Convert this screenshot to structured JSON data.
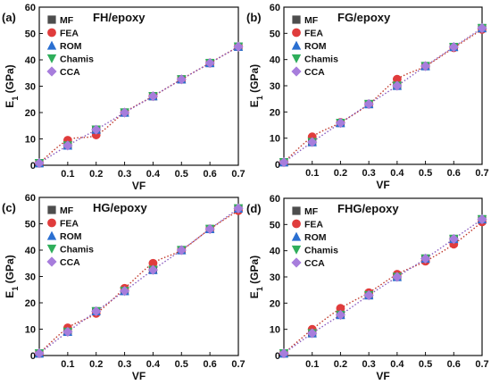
{
  "markers": {
    "MF": {
      "shape": "square",
      "color": "#4d4d4d"
    },
    "FEA": {
      "shape": "circle",
      "color": "#e03c3c"
    },
    "ROM": {
      "shape": "triangle-up",
      "color": "#2a6fd1"
    },
    "Chamis": {
      "shape": "triangle-down",
      "color": "#2fae5b"
    },
    "CCA": {
      "shape": "diamond",
      "color": "#a77ddc"
    }
  },
  "fit_line_colors": {
    "FEA": "#c0392b",
    "CCA": "#8a5cc0"
  },
  "chart_data": [
    {
      "type": "scatter",
      "tag": "(a)",
      "title": "FH/epoxy",
      "xlabel": "VF",
      "ylabel_main": "E",
      "ylabel_sub": "1",
      "ylabel_unit": " (GPa)",
      "xlim": [
        0.0,
        0.7
      ],
      "ylim": [
        0,
        60
      ],
      "xticks": [
        "0.1",
        "0.2",
        "0.3",
        "0.4",
        "0.5",
        "0.6",
        "0.7"
      ],
      "yticks": [
        "0",
        "10",
        "20",
        "30",
        "40",
        "50",
        "60"
      ],
      "grid": false,
      "legend": "top-left",
      "x": [
        0.0,
        0.1,
        0.2,
        0.3,
        0.4,
        0.5,
        0.6,
        0.7
      ],
      "series": [
        {
          "name": "MF",
          "values": [
            0.8,
            7.5,
            13.5,
            20.0,
            26.2,
            32.6,
            38.8,
            45.0
          ]
        },
        {
          "name": "FEA",
          "values": [
            0.8,
            9.5,
            11.5,
            20.0,
            26.2,
            32.6,
            38.8,
            45.0
          ]
        },
        {
          "name": "ROM",
          "values": [
            0.8,
            7.5,
            13.5,
            20.0,
            26.2,
            32.6,
            38.8,
            45.0
          ]
        },
        {
          "name": "Chamis",
          "values": [
            0.8,
            7.5,
            13.5,
            20.0,
            26.2,
            32.6,
            38.8,
            45.0
          ]
        },
        {
          "name": "CCA",
          "values": [
            0.8,
            7.5,
            13.5,
            20.0,
            26.2,
            32.6,
            38.8,
            45.0
          ]
        }
      ]
    },
    {
      "type": "scatter",
      "tag": "(b)",
      "title": "FG/epoxy",
      "xlabel": "VF",
      "ylabel_main": "E",
      "ylabel_sub": "1",
      "ylabel_unit": " (GPa)",
      "xlim": [
        0.0,
        0.7
      ],
      "ylim": [
        0,
        60
      ],
      "xticks": [
        "0.1",
        "0.2",
        "0.3",
        "0.4",
        "0.5",
        "0.6",
        "0.7"
      ],
      "yticks": [
        "0",
        "10",
        "20",
        "30",
        "40",
        "50",
        "60"
      ],
      "grid": false,
      "legend": "top-left",
      "x": [
        0.0,
        0.1,
        0.2,
        0.3,
        0.4,
        0.5,
        0.6,
        0.7
      ],
      "series": [
        {
          "name": "MF",
          "values": [
            0.8,
            8.5,
            15.8,
            23.0,
            30.0,
            37.5,
            44.8,
            52.0
          ]
        },
        {
          "name": "FEA",
          "values": [
            0.8,
            10.5,
            16.0,
            23.0,
            32.5,
            37.5,
            44.5,
            51.5
          ]
        },
        {
          "name": "ROM",
          "values": [
            0.8,
            8.5,
            15.8,
            23.0,
            30.0,
            37.5,
            44.8,
            52.0
          ]
        },
        {
          "name": "Chamis",
          "values": [
            0.8,
            8.5,
            15.8,
            23.0,
            30.0,
            37.5,
            44.8,
            52.0
          ]
        },
        {
          "name": "CCA",
          "values": [
            0.8,
            8.5,
            15.8,
            23.0,
            30.0,
            37.5,
            44.8,
            52.0
          ]
        }
      ]
    },
    {
      "type": "scatter",
      "tag": "(c)",
      "title": "HG/epoxy",
      "xlabel": "VF",
      "ylabel_main": "E",
      "ylabel_sub": "1",
      "ylabel_unit": " (GPa)",
      "xlim": [
        0.0,
        0.7
      ],
      "ylim": [
        0,
        60
      ],
      "xticks": [
        "0.1",
        "0.2",
        "0.3",
        "0.4",
        "0.5",
        "0.6",
        "0.7"
      ],
      "yticks": [
        "0",
        "10",
        "20",
        "30",
        "40",
        "50",
        "60"
      ],
      "grid": false,
      "legend": "top-left",
      "x": [
        0.0,
        0.1,
        0.2,
        0.3,
        0.4,
        0.5,
        0.6,
        0.7
      ],
      "series": [
        {
          "name": "MF",
          "values": [
            0.8,
            9.0,
            16.8,
            24.5,
            32.5,
            40.0,
            48.0,
            55.8
          ]
        },
        {
          "name": "FEA",
          "values": [
            0.8,
            10.5,
            16.0,
            25.5,
            35.0,
            40.0,
            48.0,
            55.0
          ]
        },
        {
          "name": "ROM",
          "values": [
            0.8,
            9.0,
            16.8,
            24.5,
            32.5,
            40.0,
            48.0,
            55.8
          ]
        },
        {
          "name": "Chamis",
          "values": [
            0.8,
            9.0,
            16.8,
            24.5,
            32.5,
            40.0,
            48.0,
            55.8
          ]
        },
        {
          "name": "CCA",
          "values": [
            0.8,
            9.0,
            16.8,
            24.5,
            32.5,
            40.0,
            48.0,
            55.8
          ]
        }
      ]
    },
    {
      "type": "scatter",
      "tag": "(d)",
      "title": "FHG/epoxy",
      "xlabel": "VF",
      "ylabel_main": "E",
      "ylabel_sub": "1",
      "ylabel_unit": " (GPa)",
      "xlim": [
        0.0,
        0.7
      ],
      "ylim": [
        0,
        60
      ],
      "xticks": [
        "0.1",
        "0.2",
        "0.3",
        "0.4",
        "0.5",
        "0.6",
        "0.7"
      ],
      "yticks": [
        "0",
        "10",
        "20",
        "30",
        "40",
        "50",
        "60"
      ],
      "grid": false,
      "legend": "top-left",
      "x": [
        0.0,
        0.1,
        0.2,
        0.3,
        0.4,
        0.5,
        0.6,
        0.7
      ],
      "series": [
        {
          "name": "MF",
          "values": [
            0.8,
            8.5,
            15.5,
            23.0,
            30.0,
            37.0,
            44.5,
            52.0
          ]
        },
        {
          "name": "FEA",
          "values": [
            0.8,
            10.0,
            18.0,
            24.0,
            31.0,
            36.0,
            42.5,
            51.0
          ]
        },
        {
          "name": "ROM",
          "values": [
            0.8,
            8.5,
            15.5,
            23.0,
            30.0,
            37.0,
            44.5,
            52.0
          ]
        },
        {
          "name": "Chamis",
          "values": [
            0.8,
            8.5,
            15.5,
            23.0,
            30.0,
            37.0,
            44.5,
            52.0
          ]
        },
        {
          "name": "CCA",
          "values": [
            0.8,
            8.5,
            15.5,
            23.0,
            30.0,
            37.0,
            44.5,
            52.0
          ]
        }
      ]
    }
  ]
}
